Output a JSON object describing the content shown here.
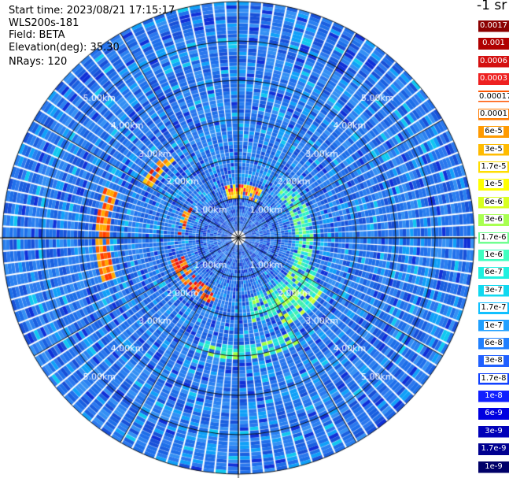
{
  "info": {
    "start_time": "Start time: 2023/08/21 17:15:17",
    "instrument": "WLS200s-181",
    "field": "Field: BETA",
    "elevation": "Elevation(deg): 35.30",
    "nrays": "NRays: 120"
  },
  "chart_data": {
    "type": "heatmap",
    "projection": "polar-ppi",
    "field": "BETA",
    "n_rays": 120,
    "range_rings": [
      "1.00km",
      "2.00km",
      "3.00km",
      "4.00km",
      "5.00km"
    ],
    "range_ring_values_km": [
      1,
      2,
      3,
      4,
      5
    ],
    "max_range_km": 6,
    "colorbar": {
      "title": "-1 sr",
      "labels": [
        "0.0017",
        "0.001",
        "0.0006",
        "0.0003",
        "0.00017",
        "0.0001",
        "6e-5",
        "3e-5",
        "1.7e-5",
        "1e-5",
        "6e-6",
        "3e-6",
        "1.7e-6",
        "1e-6",
        "6e-7",
        "3e-7",
        "1.7e-7",
        "1e-7",
        "6e-8",
        "3e-8",
        "1.7e-8",
        "1e-8",
        "6e-9",
        "3e-9",
        "1.7e-9",
        "1e-9"
      ],
      "colors": [
        "#8b0000",
        "#b00000",
        "#d41010",
        "#ee2020",
        "#ff5500",
        "#ff7a00",
        "#ff9a00",
        "#ffbb00",
        "#ffdd00",
        "#ffff00",
        "#d8ff20",
        "#a8ff50",
        "#70ff90",
        "#40ffc0",
        "#20f0e0",
        "#10d8f0",
        "#10c0ff",
        "#20a0ff",
        "#2080ff",
        "#2060ff",
        "#1040ff",
        "#1020ff",
        "#0000e0",
        "#0000b8",
        "#000090",
        "#000068"
      ]
    }
  }
}
